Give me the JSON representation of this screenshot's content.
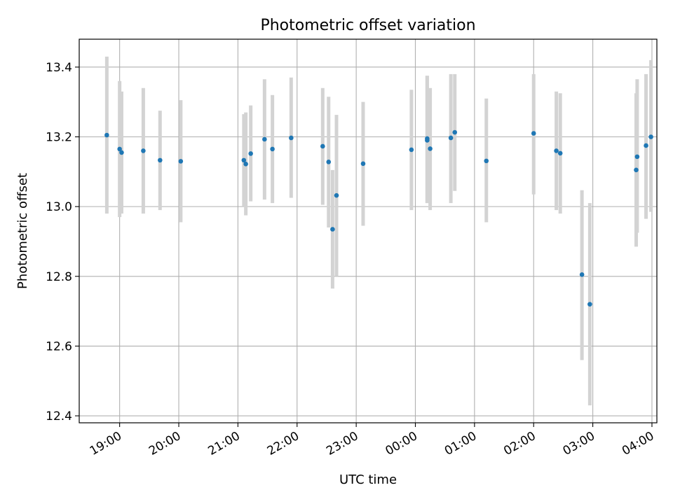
{
  "chart_data": {
    "type": "scatter",
    "title": "Photometric offset variation",
    "xlabel": "UTC time",
    "ylabel": "Photometric offset",
    "ylim": [
      12.38,
      13.48
    ],
    "xlim": [
      "18:19",
      "04:05"
    ],
    "grid": true,
    "x_ticks": [
      "19:00",
      "20:00",
      "21:00",
      "22:00",
      "23:00",
      "00:00",
      "01:00",
      "02:00",
      "03:00",
      "04:00"
    ],
    "y_ticks": [
      "12.4",
      "12.6",
      "12.8",
      "13.0",
      "13.2",
      "13.4"
    ],
    "point_color": "#1f77b4",
    "errorbar_color": "#d3d3d3",
    "points": [
      {
        "x": "18:47",
        "y": 13.205,
        "ylow": 12.98,
        "yhigh": 13.43
      },
      {
        "x": "19:00",
        "y": 13.165,
        "ylow": 12.97,
        "yhigh": 13.36
      },
      {
        "x": "19:02",
        "y": 13.155,
        "ylow": 12.98,
        "yhigh": 13.33
      },
      {
        "x": "19:24",
        "y": 13.16,
        "ylow": 12.98,
        "yhigh": 13.34
      },
      {
        "x": "19:41",
        "y": 13.133,
        "ylow": 12.99,
        "yhigh": 13.275
      },
      {
        "x": "20:02",
        "y": 13.13,
        "ylow": 12.955,
        "yhigh": 13.305
      },
      {
        "x": "21:06",
        "y": 13.133,
        "ylow": 13.0,
        "yhigh": 13.265
      },
      {
        "x": "21:08",
        "y": 13.122,
        "ylow": 12.975,
        "yhigh": 13.27
      },
      {
        "x": "21:13",
        "y": 13.152,
        "ylow": 13.015,
        "yhigh": 13.29
      },
      {
        "x": "21:27",
        "y": 13.193,
        "ylow": 13.02,
        "yhigh": 13.365
      },
      {
        "x": "21:35",
        "y": 13.165,
        "ylow": 13.01,
        "yhigh": 13.32
      },
      {
        "x": "21:54",
        "y": 13.197,
        "ylow": 13.025,
        "yhigh": 13.37
      },
      {
        "x": "22:26",
        "y": 13.173,
        "ylow": 13.005,
        "yhigh": 13.34
      },
      {
        "x": "22:32",
        "y": 13.128,
        "ylow": 12.94,
        "yhigh": 13.315
      },
      {
        "x": "22:36",
        "y": 12.935,
        "ylow": 12.765,
        "yhigh": 13.105
      },
      {
        "x": "22:40",
        "y": 13.032,
        "ylow": 12.8,
        "yhigh": 13.263
      },
      {
        "x": "23:07",
        "y": 13.123,
        "ylow": 12.945,
        "yhigh": 13.3
      },
      {
        "x": "23:56",
        "y": 13.163,
        "ylow": 12.99,
        "yhigh": 13.335
      },
      {
        "x": "00:12",
        "y": 13.19,
        "ylow": 13.01,
        "yhigh": 13.375
      },
      {
        "x": "00:12",
        "y": 13.195,
        "ylow": 13.01,
        "yhigh": 13.375
      },
      {
        "x": "00:15",
        "y": 13.166,
        "ylow": 12.99,
        "yhigh": 13.34
      },
      {
        "x": "00:36",
        "y": 13.197,
        "ylow": 13.01,
        "yhigh": 13.38
      },
      {
        "x": "00:40",
        "y": 13.213,
        "ylow": 13.045,
        "yhigh": 13.38
      },
      {
        "x": "01:12",
        "y": 13.131,
        "ylow": 12.955,
        "yhigh": 13.31
      },
      {
        "x": "02:00",
        "y": 13.21,
        "ylow": 13.035,
        "yhigh": 13.38
      },
      {
        "x": "02:23",
        "y": 13.16,
        "ylow": 12.99,
        "yhigh": 13.33
      },
      {
        "x": "02:27",
        "y": 13.153,
        "ylow": 12.98,
        "yhigh": 13.325
      },
      {
        "x": "02:49",
        "y": 12.805,
        "ylow": 12.56,
        "yhigh": 13.047
      },
      {
        "x": "02:57",
        "y": 12.72,
        "ylow": 12.43,
        "yhigh": 13.01
      },
      {
        "x": "03:44",
        "y": 13.105,
        "ylow": 12.885,
        "yhigh": 13.325
      },
      {
        "x": "03:45",
        "y": 13.143,
        "ylow": 12.925,
        "yhigh": 13.365
      },
      {
        "x": "03:54",
        "y": 13.175,
        "ylow": 12.965,
        "yhigh": 13.38
      },
      {
        "x": "03:59",
        "y": 13.2,
        "ylow": 12.985,
        "yhigh": 13.42
      }
    ]
  }
}
